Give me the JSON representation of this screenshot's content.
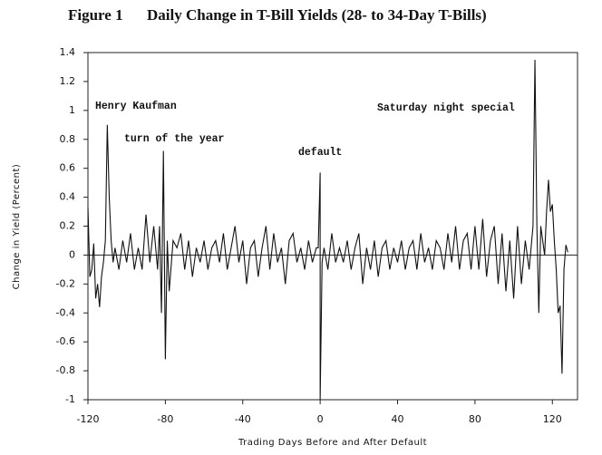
{
  "chart_data": {
    "type": "line",
    "title": "Figure 1",
    "subtitle": "Daily Change in T-Bill Yields (28- to 34-Day T-Bills)",
    "x_label": "Trading Days Before and After Default",
    "y_label": "Change in Yield (Percent)",
    "annotations": [
      "Henry Kaufman",
      "turn of the year",
      "default",
      "Saturday night special"
    ],
    "xlim": [
      -120,
      133
    ],
    "xticks": [
      -120,
      -80,
      -40,
      0,
      40,
      80,
      120
    ],
    "ylim": [
      -1,
      1.4
    ],
    "yticks": [
      -1,
      -0.8,
      -0.6,
      -0.4,
      -0.2,
      0,
      0.2,
      0.4,
      0.6,
      0.8,
      1,
      1.2,
      1.4
    ],
    "x": [
      -120,
      -119,
      -118,
      -117,
      -116,
      -115,
      -114,
      -113,
      -112,
      -111,
      -110,
      -109,
      -108,
      -107,
      -106,
      -104,
      -102,
      -100,
      -98,
      -96,
      -94,
      -92,
      -90,
      -88,
      -86,
      -84,
      -83,
      -82,
      -81,
      -80,
      -79,
      -78,
      -76,
      -74,
      -72,
      -70,
      -68,
      -66,
      -64,
      -62,
      -60,
      -58,
      -56,
      -54,
      -52,
      -50,
      -48,
      -46,
      -44,
      -42,
      -40,
      -38,
      -36,
      -34,
      -32,
      -30,
      -28,
      -26,
      -24,
      -22,
      -20,
      -18,
      -16,
      -14,
      -12,
      -10,
      -8,
      -6,
      -4,
      -2,
      -1,
      0,
      0,
      1,
      2,
      4,
      6,
      8,
      10,
      12,
      14,
      16,
      18,
      20,
      22,
      24,
      26,
      28,
      30,
      32,
      34,
      36,
      38,
      40,
      42,
      44,
      46,
      48,
      50,
      52,
      54,
      56,
      58,
      60,
      62,
      64,
      66,
      68,
      70,
      72,
      74,
      76,
      78,
      80,
      82,
      84,
      86,
      88,
      90,
      92,
      94,
      96,
      98,
      100,
      102,
      104,
      106,
      108,
      110,
      111,
      112,
      113,
      114,
      116,
      117,
      118,
      119,
      120,
      121,
      122,
      123,
      124,
      125,
      126,
      127,
      128
    ],
    "series": [
      {
        "color": "#111111",
        "values": [
          0.33,
          -0.15,
          -0.1,
          0.08,
          -0.3,
          -0.2,
          -0.36,
          -0.15,
          -0.05,
          0.1,
          0.9,
          0.4,
          0.1,
          -0.05,
          0.05,
          -0.1,
          0.1,
          -0.05,
          0.15,
          -0.1,
          0.05,
          -0.1,
          0.28,
          -0.05,
          0.2,
          -0.1,
          0.2,
          -0.4,
          0.72,
          -0.72,
          0.1,
          -0.25,
          0.1,
          0.05,
          0.15,
          -0.1,
          0.1,
          -0.15,
          0.05,
          -0.05,
          0.1,
          -0.1,
          0.05,
          0.1,
          -0.05,
          0.15,
          -0.1,
          0.05,
          0.2,
          -0.05,
          0.1,
          -0.2,
          0.05,
          0.1,
          -0.15,
          0.05,
          0.2,
          -0.1,
          0.15,
          -0.05,
          0.05,
          -0.2,
          0.1,
          0.15,
          -0.05,
          0.05,
          -0.1,
          0.1,
          -0.05,
          0.05,
          0.05,
          0.57,
          -1.0,
          -0.05,
          0.05,
          -0.1,
          0.15,
          -0.05,
          0.05,
          -0.05,
          0.1,
          -0.1,
          0.05,
          0.15,
          -0.2,
          0.05,
          -0.1,
          0.1,
          -0.15,
          0.05,
          0.1,
          -0.1,
          0.05,
          -0.05,
          0.1,
          -0.1,
          0.05,
          0.1,
          -0.1,
          0.15,
          -0.05,
          0.05,
          -0.1,
          0.1,
          0.05,
          -0.1,
          0.15,
          -0.05,
          0.2,
          -0.1,
          0.1,
          0.15,
          -0.1,
          0.2,
          -0.1,
          0.25,
          -0.15,
          0.1,
          0.2,
          -0.2,
          0.15,
          -0.25,
          0.1,
          -0.3,
          0.2,
          -0.2,
          0.1,
          -0.1,
          0.2,
          1.35,
          0.2,
          -0.4,
          0.2,
          0.0,
          0.3,
          0.52,
          0.3,
          0.35,
          0.1,
          -0.1,
          -0.4,
          -0.35,
          -0.82,
          -0.1,
          0.07,
          0.02
        ]
      }
    ]
  }
}
